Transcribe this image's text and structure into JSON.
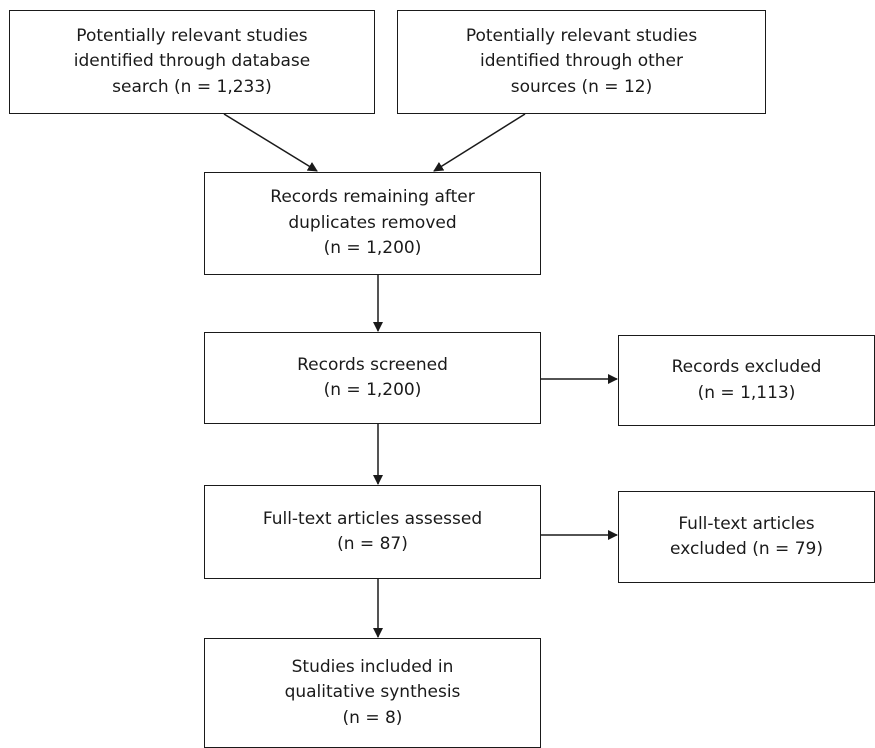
{
  "boxes": {
    "database_search": "Potentially relevant studies\nidentified through database\nsearch (n = 1,233)",
    "other_sources": "Potentially relevant studies\nidentified through other\nsources (n = 12)",
    "duplicates_removed": "Records remaining after\nduplicates removed\n(n = 1,200)",
    "screened": "Records screened\n(n = 1,200)",
    "excluded": "Records excluded\n(n = 1,113)",
    "fulltext_assessed": "Full-text articles assessed\n(n = 87)",
    "fulltext_excluded": "Full-text articles\nexcluded (n = 79)",
    "included": "Studies included in\nqualitative synthesis\n(n = 8)"
  }
}
